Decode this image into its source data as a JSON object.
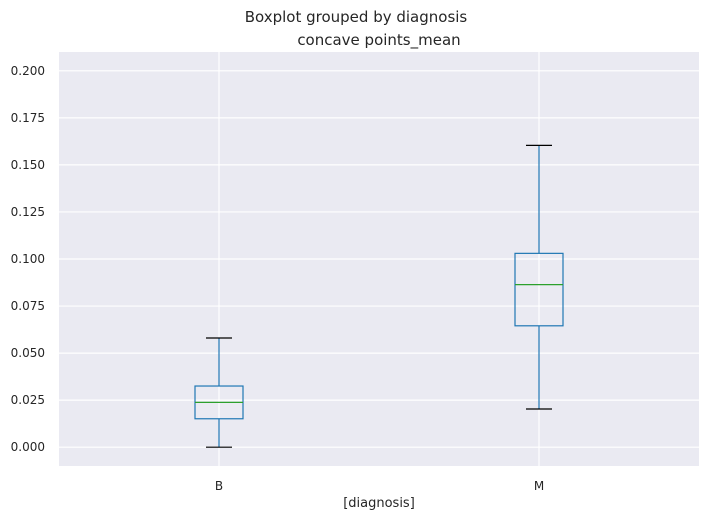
{
  "chart_data": {
    "type": "box",
    "suptitle": "Boxplot grouped by diagnosis",
    "title": "concave points_mean",
    "xlabel": "[diagnosis]",
    "ylabel": "",
    "categories": [
      "B",
      "M"
    ],
    "boxes": [
      {
        "category": "B",
        "whisker_low": 0.0,
        "q1": 0.0151,
        "median": 0.0238,
        "q3": 0.0325,
        "whisker_high": 0.058
      },
      {
        "category": "M",
        "whisker_low": 0.0203,
        "q1": 0.0645,
        "median": 0.0864,
        "q3": 0.103,
        "whisker_high": 0.1604
      }
    ],
    "ylim": [
      -0.01,
      0.21
    ],
    "yticks": [
      0.0,
      0.025,
      0.05,
      0.075,
      0.1,
      0.125,
      0.15,
      0.175,
      0.2
    ],
    "ytick_labels": [
      "0.000",
      "0.025",
      "0.050",
      "0.075",
      "0.100",
      "0.125",
      "0.150",
      "0.175",
      "0.200"
    ],
    "grid": true,
    "colors": {
      "background": "#eaeaf2",
      "grid": "#ffffff",
      "box": "#1f77b4",
      "median": "#2ca02c",
      "whisker_cap": "#000000"
    }
  }
}
